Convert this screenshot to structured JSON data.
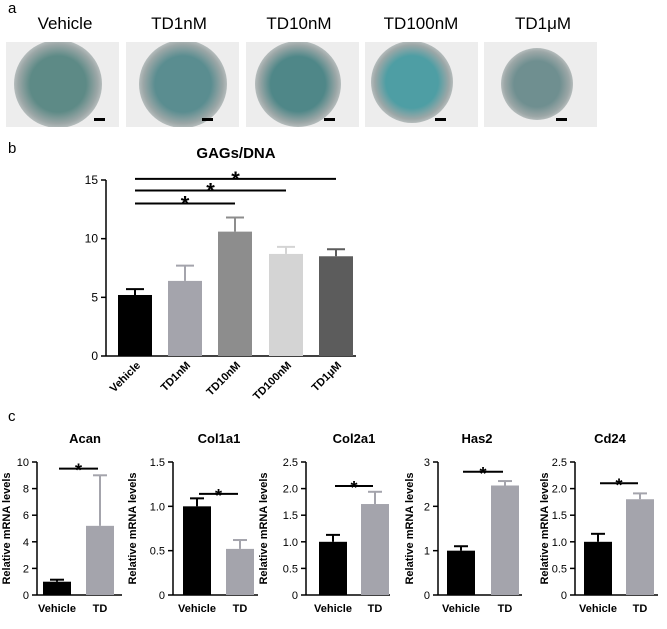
{
  "panel_labels": {
    "a": "a",
    "b": "b",
    "c": "c"
  },
  "panel_a": {
    "images": [
      {
        "label": "Vehicle",
        "stain": "#5d8a86"
      },
      {
        "label": "TD1nM",
        "stain": "#5a8d90"
      },
      {
        "label": "TD10nM",
        "stain": "#4f8788"
      },
      {
        "label": "TD100nM",
        "stain": "#4e9ea4"
      },
      {
        "label": "TD1μM",
        "stain": "#6f8f90"
      }
    ]
  },
  "colors": {
    "vehicle": "#000000",
    "td1nm": "#a4a4ac",
    "td10nm": "#8d8d8d",
    "td100nm": "#d4d4d4",
    "td1um": "#5c5c5c",
    "td": "#a4a4ac"
  },
  "chart_data": [
    {
      "id": "gags",
      "type": "bar",
      "title": "GAGs/DNA",
      "xlabel": "",
      "ylabel": "",
      "categories": [
        "Vehicle",
        "TD1nM",
        "TD10nM",
        "TD100nM",
        "TD1μM"
      ],
      "values": [
        5.2,
        6.4,
        10.6,
        8.7,
        8.5
      ],
      "errors": [
        0.5,
        1.3,
        1.2,
        0.6,
        0.6
      ],
      "colors": [
        "#000000",
        "#a4a4ac",
        "#8d8d8d",
        "#d4d4d4",
        "#5c5c5c"
      ],
      "ylim": [
        0,
        15
      ],
      "yticks": [
        "0",
        "5",
        "10",
        "15"
      ],
      "significance": [
        {
          "from": "Vehicle",
          "to": "TD10nM",
          "level": 13.0,
          "label": "*"
        },
        {
          "from": "Vehicle",
          "to": "TD100nM",
          "level": 14.1,
          "label": "*"
        },
        {
          "from": "Vehicle",
          "to": "TD1μM",
          "level": 15.1,
          "label": "*"
        }
      ]
    },
    {
      "id": "acan",
      "type": "bar",
      "title": "Acan",
      "ylabel": "Relative mRNA levels",
      "categories": [
        "Vehicle",
        "TD"
      ],
      "values": [
        1.0,
        5.2
      ],
      "errors": [
        0.15,
        3.8
      ],
      "colors": [
        "#000000",
        "#a4a4ac"
      ],
      "ylim": [
        0,
        10
      ],
      "yticks": [
        "0",
        "2",
        "4",
        "6",
        "8",
        "10"
      ],
      "significance": [
        {
          "from": "Vehicle",
          "to": "TD",
          "level": 9.5,
          "label": "*"
        }
      ]
    },
    {
      "id": "col1a1",
      "type": "bar",
      "title": "Col1a1",
      "ylabel": "Relative mRNA levels",
      "categories": [
        "Vehicle",
        "TD"
      ],
      "values": [
        1.0,
        0.52
      ],
      "errors": [
        0.09,
        0.1
      ],
      "colors": [
        "#000000",
        "#a4a4ac"
      ],
      "ylim": [
        0,
        1.5
      ],
      "yticks": [
        "0",
        "0.5",
        "1.0",
        "1.5"
      ],
      "significance": [
        {
          "from": "Vehicle",
          "to": "TD",
          "level": 1.14,
          "label": "*"
        }
      ]
    },
    {
      "id": "col2a1",
      "type": "bar",
      "title": "Col2a1",
      "ylabel": "Relative mRNA levels",
      "categories": [
        "Vehicle",
        "TD"
      ],
      "values": [
        1.0,
        1.71
      ],
      "errors": [
        0.13,
        0.23
      ],
      "colors": [
        "#000000",
        "#a4a4ac"
      ],
      "ylim": [
        0,
        2.5
      ],
      "yticks": [
        "0",
        "0.5",
        "1.0",
        "1.5",
        "2.0",
        "2.5"
      ],
      "significance": [
        {
          "from": "Vehicle",
          "to": "TD",
          "level": 2.05,
          "label": "*"
        }
      ]
    },
    {
      "id": "has2",
      "type": "bar",
      "title": "Has2",
      "ylabel": "Relative mRNA levels",
      "categories": [
        "Vehicle",
        "TD"
      ],
      "values": [
        1.0,
        2.47
      ],
      "errors": [
        0.1,
        0.1
      ],
      "colors": [
        "#000000",
        "#a4a4ac"
      ],
      "ylim": [
        0,
        3
      ],
      "yticks": [
        "0",
        "1",
        "2",
        "3"
      ],
      "significance": [
        {
          "from": "Vehicle",
          "to": "TD",
          "level": 2.78,
          "label": "*"
        }
      ]
    },
    {
      "id": "cd24",
      "type": "bar",
      "title": "Cd24",
      "ylabel": "Relative mRNA levels",
      "categories": [
        "Vehicle",
        "TD"
      ],
      "values": [
        1.0,
        1.8
      ],
      "errors": [
        0.15,
        0.11
      ],
      "colors": [
        "#000000",
        "#a4a4ac"
      ],
      "ylim": [
        0,
        2.5
      ],
      "yticks": [
        "0",
        "0.5",
        "1.0",
        "1.5",
        "2.0",
        "2.5"
      ],
      "significance": [
        {
          "from": "Vehicle",
          "to": "TD",
          "level": 2.1,
          "label": "*"
        }
      ]
    }
  ]
}
